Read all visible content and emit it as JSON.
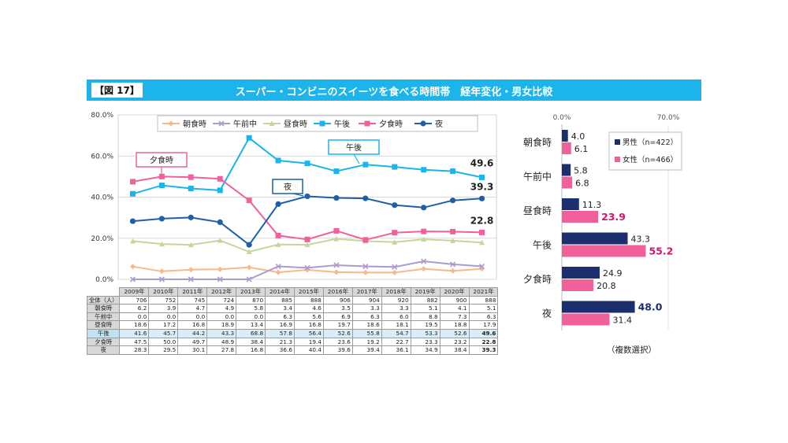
{
  "header": {
    "label": "【図 17】",
    "title": "スーパー・コンビニのスイーツを食べる時間帯　経年変化・男女比較"
  },
  "colors": {
    "header": "#1cb4ea",
    "male": "#1b2f6e",
    "female": "#f0619c",
    "highlight_text": "#d0156b"
  },
  "chart_data": [
    {
      "type": "line",
      "x": [
        "2009年",
        "2010年",
        "2011年",
        "2012年",
        "2013年",
        "2014年",
        "2015年",
        "2016年",
        "2017年",
        "2018年",
        "2019年",
        "2020年",
        "2021年"
      ],
      "yticks": [
        "0.0%",
        "20.0%",
        "40.0%",
        "60.0%",
        "80.0%"
      ],
      "ylim": [
        0,
        80
      ],
      "legend_position": "top",
      "series": [
        {
          "name": "朝食時",
          "color": "#f7b88d",
          "marker": "diamond",
          "values": [
            6.2,
            3.9,
            4.7,
            4.9,
            5.8,
            3.4,
            4.6,
            3.5,
            3.3,
            3.3,
            5.1,
            4.1,
            5.1
          ]
        },
        {
          "name": "午前中",
          "color": "#ad9bcd",
          "marker": "x",
          "values": [
            0.0,
            0.0,
            0.0,
            0.0,
            0.0,
            6.3,
            5.6,
            6.9,
            6.3,
            6.0,
            8.8,
            7.3,
            6.3
          ]
        },
        {
          "name": "昼食時",
          "color": "#c4d79b",
          "marker": "triangle",
          "values": [
            18.6,
            17.2,
            16.8,
            18.9,
            13.4,
            16.9,
            16.8,
            19.7,
            18.6,
            18.1,
            19.5,
            18.8,
            17.9
          ]
        },
        {
          "name": "午後",
          "color": "#1cb4ea",
          "marker": "square",
          "values": [
            41.6,
            45.7,
            44.2,
            43.3,
            68.8,
            57.8,
            56.4,
            52.6,
            55.8,
            54.7,
            53.3,
            52.6,
            49.6
          ]
        },
        {
          "name": "夕食時",
          "color": "#f0619c",
          "marker": "square",
          "values": [
            47.5,
            50.0,
            49.7,
            48.9,
            38.4,
            21.3,
            19.4,
            23.6,
            19.2,
            22.7,
            23.3,
            23.2,
            22.8
          ]
        },
        {
          "name": "夜",
          "color": "#1f5fa8",
          "marker": "circle",
          "values": [
            28.3,
            29.5,
            30.1,
            27.8,
            16.8,
            36.6,
            40.4,
            39.6,
            39.4,
            36.1,
            34.9,
            38.4,
            39.3
          ]
        }
      ],
      "end_labels": [
        "49.6",
        "39.3",
        "22.8"
      ],
      "callouts": [
        {
          "text": "夕食時",
          "series": "夕食時"
        },
        {
          "text": "午後",
          "series": "午後"
        },
        {
          "text": "夜",
          "series": "夜"
        }
      ],
      "table": {
        "total_label": "全体（人）",
        "totals": [
          706,
          752,
          745,
          724,
          870,
          885,
          888,
          906,
          904,
          920,
          882,
          900,
          888
        ],
        "rows": [
          {
            "name": "朝食時",
            "cells": [
              "6.2",
              "3.9",
              "4.7",
              "4.9",
              "5.8",
              "3.4",
              "4.6",
              "3.5",
              "3.3",
              "3.3",
              "5.1",
              "4.1",
              "5.1"
            ]
          },
          {
            "name": "午前中",
            "cells": [
              "0.0",
              "0.0",
              "0.0",
              "0.0",
              "0.0",
              "6.3",
              "5.6",
              "6.9",
              "6.3",
              "6.0",
              "8.8",
              "7.3",
              "6.3"
            ]
          },
          {
            "name": "昼食時",
            "cells": [
              "18.6",
              "17.2",
              "16.8",
              "18.9",
              "13.4",
              "16.9",
              "16.8",
              "19.7",
              "18.6",
              "18.1",
              "19.5",
              "18.8",
              "17.9"
            ]
          },
          {
            "name": "午後",
            "cells": [
              "41.6",
              "45.7",
              "44.2",
              "43.3",
              "68.8",
              "57.8",
              "56.4",
              "52.6",
              "55.8",
              "54.7",
              "53.3",
              "52.6",
              "49.6"
            ]
          },
          {
            "name": "夕食時",
            "cells": [
              "47.5",
              "50.0",
              "49.7",
              "48.9",
              "38.4",
              "21.3",
              "19.4",
              "23.6",
              "19.2",
              "22.7",
              "23.3",
              "23.2",
              "22.8"
            ]
          },
          {
            "name": "夜",
            "cells": [
              "28.3",
              "29.5",
              "30.1",
              "27.8",
              "16.8",
              "36.6",
              "40.4",
              "39.6",
              "39.4",
              "36.1",
              "34.9",
              "38.4",
              "39.3"
            ]
          }
        ]
      }
    },
    {
      "type": "bar",
      "orientation": "horizontal",
      "categories": [
        "朝食時",
        "午前中",
        "昼食時",
        "午後",
        "夕食時",
        "夜"
      ],
      "xlim": [
        0,
        70
      ],
      "xticks": [
        "0.0%",
        "70.0%"
      ],
      "legend_position": "top-right",
      "series": [
        {
          "name": "男性（n=422）",
          "color": "#1b2f6e",
          "values": [
            4.0,
            5.8,
            11.3,
            43.3,
            24.9,
            48.0
          ],
          "labels": [
            "4.0",
            "5.8",
            "11.3",
            "43.3",
            "24.9",
            "48.0"
          ]
        },
        {
          "name": "女性（n=466）",
          "color": "#f0619c",
          "values": [
            6.1,
            6.8,
            23.9,
            55.2,
            20.8,
            31.4
          ],
          "labels": [
            "6.1",
            "6.8",
            "23.9",
            "55.2",
            "20.8",
            "31.4"
          ]
        }
      ],
      "emphasized": [
        {
          "series": 1,
          "index": 2
        },
        {
          "series": 1,
          "index": 3
        },
        {
          "series": 0,
          "index": 5
        }
      ],
      "note": "（複数選択）"
    }
  ]
}
